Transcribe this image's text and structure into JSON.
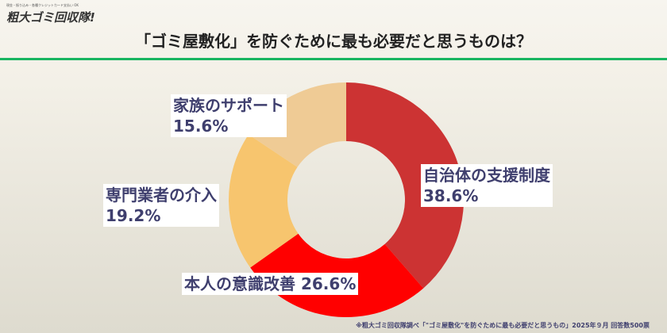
{
  "logo": {
    "tagline": "現金・振り込み・各種クレジットカード支払い OK",
    "name": "粗大ゴミ回収隊!"
  },
  "title": "「ゴミ屋敷化」を防ぐために最も必要だと思うものは？",
  "chart_data": {
    "type": "pie",
    "donut": true,
    "title": "「ゴミ屋敷化」を防ぐために最も必要だと思うものは？",
    "categories": [
      "自治体の支援制度",
      "本人の意識改善",
      "専門業者の介入",
      "家族のサポート"
    ],
    "values": [
      38.6,
      26.6,
      19.2,
      15.6
    ],
    "labels": [
      "38.6%",
      "26.6%",
      "19.2%",
      "15.6%"
    ],
    "colors": [
      "#cc3333",
      "#ff0000",
      "#f7c56e",
      "#efcb95"
    ],
    "start": "top, clockwise"
  },
  "footnote": "※粗大ゴミ回収隊調べ「\"ゴミ屋敷化\"を防ぐために最も必要だと思うもの」2025年９月 回答数500票"
}
